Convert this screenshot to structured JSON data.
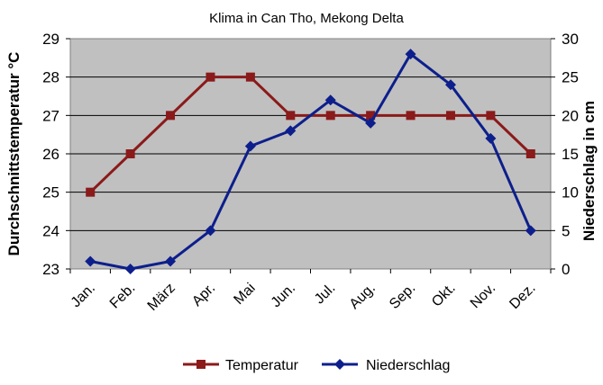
{
  "chart_data": {
    "type": "line",
    "title": "Klima in Can Tho, Mekong Delta",
    "categories": [
      "Jan.",
      "Feb.",
      "März",
      "Apr.",
      "Mai",
      "Jun.",
      "Jul.",
      "Aug.",
      "Sep.",
      "Okt.",
      "Nov.",
      "Dez."
    ],
    "y_left": {
      "label": "Durchschnittstemperatur °C",
      "lim": [
        23,
        29
      ],
      "ticks": [
        23,
        24,
        25,
        26,
        27,
        28,
        29
      ]
    },
    "y_right": {
      "label": "Niederschlag in cm",
      "lim": [
        0,
        30
      ],
      "ticks": [
        0,
        5,
        10,
        15,
        20,
        25,
        30
      ]
    },
    "series": [
      {
        "name": "Temperatur",
        "axis": "left",
        "color": "#8b1a1a",
        "marker": "square",
        "values": [
          25,
          26,
          27,
          28,
          28,
          27,
          27,
          27,
          27,
          27,
          27,
          26
        ]
      },
      {
        "name": "Niederschlag",
        "axis": "right",
        "color": "#0d1f8c",
        "marker": "diamond",
        "values": [
          1,
          0,
          1,
          5,
          16,
          18,
          22,
          19,
          28,
          24,
          17,
          5
        ]
      }
    ],
    "grid": "horizontal",
    "plot_background": "#c0c0c0",
    "legend_position": "bottom"
  }
}
